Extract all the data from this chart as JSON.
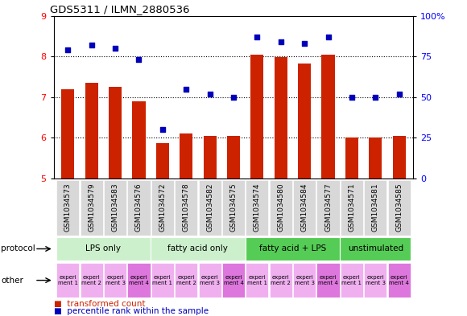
{
  "title": "GDS5311 / ILMN_2880536",
  "samples": [
    "GSM1034573",
    "GSM1034579",
    "GSM1034583",
    "GSM1034576",
    "GSM1034572",
    "GSM1034578",
    "GSM1034582",
    "GSM1034575",
    "GSM1034574",
    "GSM1034580",
    "GSM1034584",
    "GSM1034577",
    "GSM1034571",
    "GSM1034581",
    "GSM1034585"
  ],
  "red_values": [
    7.2,
    7.35,
    7.25,
    6.9,
    5.88,
    6.1,
    6.05,
    6.05,
    8.05,
    7.98,
    7.82,
    8.05,
    6.0,
    6.0,
    6.05
  ],
  "blue_values": [
    79,
    82,
    80,
    73,
    30,
    55,
    52,
    50,
    87,
    84,
    83,
    87,
    50,
    50,
    52
  ],
  "ylim_left": [
    5,
    9
  ],
  "ylim_right": [
    0,
    100
  ],
  "yticks_left": [
    5,
    6,
    7,
    8,
    9
  ],
  "yticks_right": [
    0,
    25,
    50,
    75,
    100
  ],
  "protocol_data": [
    {
      "label": "LPS only",
      "start": 0,
      "end": 3,
      "color": "#ccf0cc"
    },
    {
      "label": "fatty acid only",
      "start": 4,
      "end": 7,
      "color": "#ccf0cc"
    },
    {
      "label": "fatty acid + LPS",
      "start": 8,
      "end": 11,
      "color": "#55cc55"
    },
    {
      "label": "unstimulated",
      "start": 12,
      "end": 14,
      "color": "#55cc55"
    }
  ],
  "other_colors_per_sample": [
    "#f0b0f0",
    "#f0b0f0",
    "#f0b0f0",
    "#dd77dd",
    "#f0b0f0",
    "#f0b0f0",
    "#f0b0f0",
    "#dd77dd",
    "#f0b0f0",
    "#f0b0f0",
    "#f0b0f0",
    "#dd77dd",
    "#f0b0f0",
    "#f0b0f0",
    "#dd77dd"
  ],
  "other_labels": [
    "experi\nment 1",
    "experi\nment 2",
    "experi\nment 3",
    "experi\nment 4",
    "experi\nment 1",
    "experi\nment 2",
    "experi\nment 3",
    "experi\nment 4",
    "experi\nment 1",
    "experi\nment 2",
    "experi\nment 3",
    "experi\nment 4",
    "experi\nment 1",
    "experi\nment 3",
    "experi\nment 4"
  ],
  "sample_bg_color": "#d8d8d8",
  "bar_color": "#cc2200",
  "dot_color": "#0000bb",
  "tick_fontsize": 8,
  "sample_label_fontsize": 6.5
}
